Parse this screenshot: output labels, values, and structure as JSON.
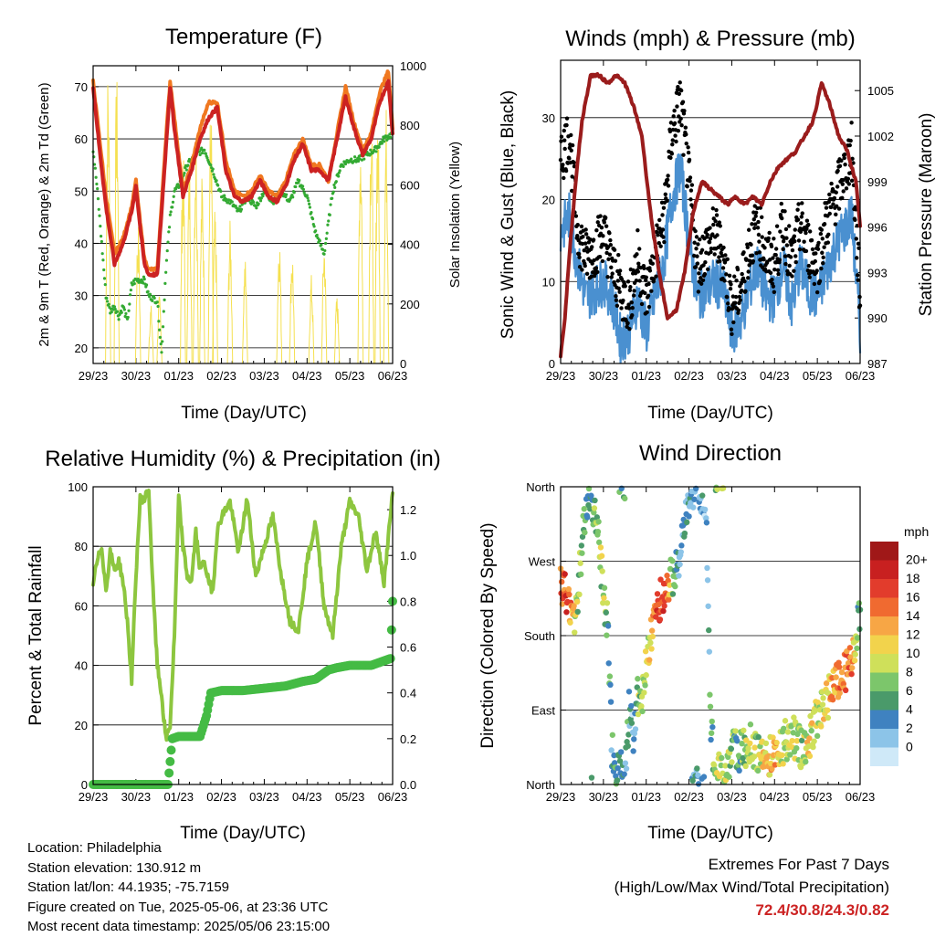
{
  "panels": {
    "temperature": {
      "title": "Temperature (F)",
      "ylabel_left": "2m & 9m T (Red, Orange) & 2m Td (Green)",
      "ylabel_right": "Solar Insolation (Yellow)",
      "xlabel": "Time (Day/UTC)"
    },
    "winds": {
      "title": "Winds (mph) & Pressure (mb)",
      "ylabel_left": "Sonic Wind & Gust (Blue, Black)",
      "ylabel_right": "Station Pressure (Maroon)",
      "xlabel": "Time (Day/UTC)"
    },
    "humidity": {
      "title": "Relative Humidity (%) & Precipitation (in)",
      "ylabel_left": "Percent & Total Rainfall",
      "xlabel": "Time (Day/UTC)"
    },
    "direction": {
      "title": "Wind Direction",
      "ylabel_left": "Direction (Colored By Speed)",
      "xlabel": "Time (Day/UTC)",
      "colorbar_title": "mph"
    }
  },
  "footer": {
    "location": "Location: Philadelphia",
    "elevation": "Station elevation: 130.912 m",
    "latlon": "Station lat/lon: 44.1935; -75.7159",
    "created": "Figure created on Tue, 2025-05-06, at 23:36 UTC",
    "recent": "Most recent data timestamp: 2025/05/06 23:15:00",
    "extremes_title": "Extremes For Past 7 Days",
    "extremes_sub": "(High/Low/Max Wind/Total Precipitation)",
    "extremes_value": "72.4/30.8/24.3/0.82"
  },
  "chart_data": [
    {
      "type": "line",
      "id": "temperature",
      "x_ticks": [
        "29/23",
        "30/23",
        "01/23",
        "02/23",
        "03/23",
        "04/23",
        "05/23",
        "06/23"
      ],
      "xlim": [
        0,
        7
      ],
      "ylim": [
        17,
        74
      ],
      "y_ticks": [
        20,
        30,
        40,
        50,
        60,
        70
      ],
      "y2lim": [
        0,
        1000
      ],
      "y2_ticks": [
        0,
        200,
        400,
        600,
        800,
        1000
      ],
      "colors": {
        "t2m": "#cc2222",
        "t9m": "#f07820",
        "td": "#33aa33",
        "solar": "#f5e050"
      },
      "series": [
        {
          "key": "t9m",
          "x": [
            0,
            0.15,
            0.3,
            0.5,
            0.7,
            0.9,
            1.0,
            1.1,
            1.2,
            1.3,
            1.5,
            1.7,
            1.8,
            1.9,
            2.1,
            2.3,
            2.5,
            2.7,
            2.9,
            3.1,
            3.3,
            3.5,
            3.7,
            3.9,
            4.1,
            4.3,
            4.5,
            4.7,
            4.9,
            5.1,
            5.3,
            5.5,
            5.7,
            5.9,
            6.1,
            6.3,
            6.5,
            6.7,
            6.9,
            7.0
          ],
          "y": [
            71,
            60,
            49,
            38,
            41,
            47,
            52,
            44,
            37,
            35,
            35,
            60,
            71,
            64,
            50,
            55,
            62,
            67,
            67,
            56,
            50,
            49,
            50,
            53,
            50,
            49,
            52,
            57,
            60,
            55,
            55,
            52,
            61,
            70,
            63,
            58,
            61,
            69,
            73,
            62
          ]
        },
        {
          "key": "t2m",
          "x": [
            0,
            0.15,
            0.3,
            0.5,
            0.7,
            0.9,
            1.0,
            1.1,
            1.2,
            1.3,
            1.5,
            1.7,
            1.8,
            1.9,
            2.1,
            2.3,
            2.5,
            2.7,
            2.9,
            3.1,
            3.3,
            3.5,
            3.7,
            3.9,
            4.1,
            4.3,
            4.5,
            4.7,
            4.9,
            5.1,
            5.3,
            5.5,
            5.7,
            5.9,
            6.1,
            6.3,
            6.5,
            6.7,
            6.9,
            7.0
          ],
          "y": [
            70,
            58,
            47,
            36,
            40,
            46,
            51,
            43,
            36,
            34,
            34,
            58,
            70,
            62,
            49,
            54,
            60,
            64,
            66,
            54,
            49,
            48,
            49,
            52,
            49,
            48,
            51,
            56,
            59,
            54,
            54,
            52,
            60,
            68,
            62,
            57,
            60,
            67,
            71,
            61
          ]
        },
        {
          "key": "td",
          "x": [
            0,
            0.1,
            0.2,
            0.3,
            0.4,
            0.5,
            0.6,
            0.7,
            0.8,
            0.9,
            1.0,
            1.1,
            1.2,
            1.3,
            1.5,
            1.6,
            1.7,
            1.8,
            1.9,
            2.0,
            2.2,
            2.4,
            2.6,
            2.8,
            3.0,
            3.2,
            3.4,
            3.6,
            3.8,
            4.0,
            4.2,
            4.4,
            4.6,
            4.8,
            5.0,
            5.2,
            5.4,
            5.6,
            5.8,
            6.0,
            6.2,
            6.4,
            6.6,
            6.8,
            7.0
          ],
          "y": [
            58,
            50,
            40,
            30,
            27,
            28,
            26,
            28,
            25,
            32,
            33,
            33,
            33,
            30,
            29,
            19,
            35,
            45,
            50,
            51,
            55,
            57,
            58,
            54,
            49,
            48,
            46,
            49,
            47,
            50,
            48,
            50,
            48,
            52,
            49,
            42,
            38,
            50,
            55,
            56,
            56,
            57,
            58,
            60,
            61
          ]
        },
        {
          "key": "solar",
          "type": "peaks",
          "x": [
            0.35,
            0.55,
            1.05,
            1.35,
            1.55,
            2.1,
            2.25,
            2.4,
            2.55,
            2.75,
            2.85,
            3.2,
            3.55,
            4.35,
            4.65,
            5.1,
            5.4,
            5.7,
            6.25,
            6.5,
            6.65,
            6.85
          ],
          "y": [
            1000,
            980,
            480,
            200,
            230,
            740,
            700,
            810,
            650,
            900,
            520,
            480,
            360,
            450,
            400,
            300,
            430,
            230,
            830,
            900,
            880,
            870
          ]
        }
      ]
    },
    {
      "type": "scatter",
      "id": "winds",
      "x_ticks": [
        "29/23",
        "30/23",
        "01/23",
        "02/23",
        "03/23",
        "04/23",
        "05/23",
        "06/23"
      ],
      "xlim": [
        0,
        7
      ],
      "ylim": [
        0,
        37
      ],
      "y_ticks": [
        0,
        10,
        20,
        30
      ],
      "y2lim": [
        987,
        1007
      ],
      "y2_ticks": [
        987,
        990,
        993,
        996,
        999,
        1002,
        1005
      ],
      "colors": {
        "wind": "#4a90d0",
        "gust": "#000000",
        "pressure": "#9a1c1c"
      },
      "series": [
        {
          "key": "wind",
          "x": [
            0,
            0.2,
            0.4,
            0.6,
            0.8,
            1.0,
            1.2,
            1.4,
            1.6,
            1.8,
            2.0,
            2.2,
            2.4,
            2.6,
            2.8,
            3.0,
            3.2,
            3.4,
            3.6,
            3.8,
            4.0,
            4.2,
            4.4,
            4.6,
            4.8,
            5.0,
            5.2,
            5.4,
            5.6,
            5.8,
            6.0,
            6.2,
            6.4,
            6.6,
            6.8,
            7.0
          ],
          "y": [
            16,
            18,
            12,
            8,
            9,
            10,
            8,
            3,
            4,
            8,
            4,
            8,
            12,
            20,
            24,
            15,
            8,
            9,
            10,
            9,
            4,
            5,
            9,
            12,
            8,
            8,
            12,
            7,
            12,
            9,
            8,
            11,
            14,
            16,
            18,
            4
          ]
        },
        {
          "key": "gust",
          "x": [
            0,
            0.2,
            0.4,
            0.6,
            0.8,
            1.0,
            1.2,
            1.4,
            1.6,
            1.8,
            2.0,
            2.2,
            2.4,
            2.6,
            2.8,
            3.0,
            3.2,
            3.4,
            3.6,
            3.8,
            4.0,
            4.2,
            4.4,
            4.6,
            4.8,
            5.0,
            5.2,
            5.4,
            5.6,
            5.8,
            6.0,
            6.2,
            6.4,
            6.6,
            6.8,
            7.0
          ],
          "y": [
            25,
            28,
            16,
            13,
            14,
            16,
            12,
            9,
            7,
            13,
            8,
            13,
            17,
            28,
            32,
            22,
            12,
            14,
            16,
            13,
            7,
            9,
            14,
            17,
            13,
            12,
            17,
            12,
            17,
            14,
            12,
            17,
            20,
            23,
            26,
            8
          ]
        },
        {
          "key": "pressure",
          "x": [
            0,
            0.1,
            0.2,
            0.35,
            0.5,
            0.7,
            0.9,
            1.1,
            1.3,
            1.5,
            1.7,
            1.9,
            2.1,
            2.3,
            2.5,
            2.7,
            2.9,
            3.1,
            3.3,
            3.5,
            3.7,
            3.9,
            4.1,
            4.3,
            4.5,
            4.7,
            4.9,
            5.1,
            5.3,
            5.5,
            5.7,
            5.9,
            6.1,
            6.3,
            6.5,
            6.7,
            6.9,
            7.0
          ],
          "y": [
            987.5,
            990,
            994,
            999,
            1003,
            1006,
            1006,
            1005.5,
            1006,
            1005.5,
            1004,
            1002,
            997,
            993,
            990,
            990.5,
            993,
            997,
            999,
            998.5,
            998,
            997.5,
            998,
            997.5,
            998,
            997.5,
            999,
            1000,
            1000.5,
            1001,
            1002,
            1003,
            1005.5,
            1004,
            1002,
            1001,
            999,
            996
          ]
        }
      ]
    },
    {
      "type": "line",
      "id": "humidity",
      "x_ticks": [
        "29/23",
        "30/23",
        "01/23",
        "02/23",
        "03/23",
        "04/23",
        "05/23",
        "06/23"
      ],
      "xlim": [
        0,
        7
      ],
      "ylim": [
        0,
        100
      ],
      "y_ticks": [
        0,
        20,
        40,
        60,
        80,
        100
      ],
      "y2lim": [
        0,
        1.3
      ],
      "y2_ticks": [
        0.0,
        0.2,
        0.4,
        0.6,
        0.8,
        1.0,
        1.2
      ],
      "colors": {
        "rh": "#8dc63f",
        "precip": "#44bb44"
      },
      "series": [
        {
          "key": "rh",
          "x": [
            0,
            0.1,
            0.2,
            0.3,
            0.4,
            0.5,
            0.6,
            0.7,
            0.8,
            0.9,
            1.0,
            1.1,
            1.2,
            1.3,
            1.4,
            1.5,
            1.6,
            1.7,
            1.8,
            1.9,
            2.0,
            2.1,
            2.2,
            2.3,
            2.4,
            2.5,
            2.6,
            2.7,
            2.8,
            2.9,
            3.0,
            3.2,
            3.4,
            3.6,
            3.8,
            4.0,
            4.2,
            4.4,
            4.6,
            4.8,
            5.0,
            5.2,
            5.4,
            5.6,
            5.8,
            6.0,
            6.2,
            6.4,
            6.6,
            6.8,
            7.0
          ],
          "y": [
            68,
            75,
            80,
            65,
            78,
            72,
            75,
            68,
            55,
            35,
            70,
            96,
            96,
            99,
            65,
            40,
            30,
            15,
            20,
            50,
            96,
            80,
            70,
            68,
            85,
            72,
            75,
            68,
            65,
            85,
            90,
            95,
            78,
            96,
            70,
            80,
            90,
            70,
            55,
            52,
            75,
            88,
            60,
            50,
            80,
            95,
            90,
            72,
            85,
            68,
            98
          ]
        },
        {
          "key": "precip",
          "x": [
            0,
            1.75,
            1.8,
            1.85,
            2.0,
            2.5,
            2.65,
            2.75,
            3.0,
            3.5,
            4.0,
            4.5,
            4.9,
            5.2,
            5.5,
            5.7,
            6.0,
            6.5,
            6.95,
            7.0
          ],
          "y": [
            0,
            0,
            0.1,
            0.2,
            0.21,
            0.21,
            0.3,
            0.4,
            0.41,
            0.41,
            0.42,
            0.43,
            0.45,
            0.46,
            0.5,
            0.51,
            0.52,
            0.52,
            0.55,
            0.8
          ]
        }
      ]
    },
    {
      "type": "scatter",
      "id": "direction",
      "x_ticks": [
        "29/23",
        "30/23",
        "01/23",
        "02/23",
        "03/23",
        "04/23",
        "05/23",
        "06/23"
      ],
      "xlim": [
        0,
        7
      ],
      "ylim": [
        0,
        360
      ],
      "y_tick_labels": [
        "North",
        "East",
        "South",
        "West",
        "North"
      ],
      "y_tick_values": [
        0,
        90,
        180,
        270,
        360
      ],
      "colorbar_labels": [
        "20+",
        "18",
        "16",
        "14",
        "12",
        "10",
        "8",
        "6",
        "4",
        "2",
        "0"
      ],
      "colorbar_colors": [
        "#a01818",
        "#c82020",
        "#e23c2c",
        "#f06a30",
        "#f7a645",
        "#f2d34c",
        "#cfe05a",
        "#7cc66b",
        "#4a9a6a",
        "#3f82c0",
        "#8cc4e8",
        "#cfe9f8"
      ],
      "series": [
        {
          "key": "direction",
          "x": [
            0,
            0.1,
            0.2,
            0.35,
            0.45,
            0.6,
            0.7,
            0.8,
            0.9,
            1.0,
            1.1,
            1.2,
            1.3,
            1.5,
            1.6,
            1.7,
            1.8,
            1.9,
            2.0,
            2.1,
            2.2,
            2.3,
            2.4,
            2.5,
            2.6,
            2.8,
            3.0,
            3.2,
            3.4,
            3.5,
            3.6,
            3.8,
            4.0,
            4.2,
            4.4,
            4.6,
            4.8,
            5.0,
            5.2,
            5.4,
            5.6,
            5.8,
            6.0,
            6.2,
            6.4,
            6.6,
            6.8,
            6.9,
            7.0
          ],
          "y": [
            240,
            230,
            220,
            200,
            260,
            340,
            355,
            330,
            290,
            230,
            190,
            40,
            20,
            10,
            90,
            60,
            110,
            100,
            150,
            180,
            200,
            220,
            230,
            240,
            250,
            280,
            340,
            360,
            340,
            80,
            20,
            10,
            40,
            40,
            50,
            40,
            30,
            40,
            50,
            60,
            45,
            55,
            80,
            100,
            120,
            130,
            150,
            180,
            210
          ],
          "speed": [
            16,
            18,
            16,
            10,
            8,
            6,
            6,
            8,
            8,
            10,
            8,
            4,
            6,
            6,
            4,
            2,
            8,
            10,
            10,
            12,
            16,
            18,
            18,
            16,
            8,
            4,
            4,
            4,
            2,
            6,
            8,
            10,
            8,
            6,
            10,
            8,
            12,
            14,
            10,
            10,
            8,
            12,
            10,
            12,
            14,
            16,
            16,
            8,
            4
          ]
        }
      ]
    }
  ]
}
